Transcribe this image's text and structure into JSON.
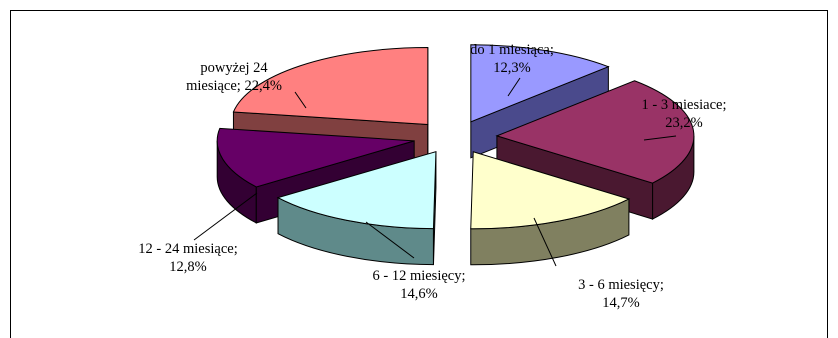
{
  "chart_data": {
    "type": "pie",
    "style": "3d-exploded",
    "legend": "none",
    "slices": [
      {
        "category": "do 1 miesiąca;",
        "percent_text": "12,3%",
        "value": 12.3,
        "top_color": "#9999ff",
        "side_color": "#4a4a8c"
      },
      {
        "category": "1 - 3 miesiace;",
        "percent_text": "23,2%",
        "value": 23.2,
        "top_color": "#993366",
        "side_color": "#4a1830"
      },
      {
        "category": "3 - 6 miesięcy;",
        "percent_text": "14,7%",
        "value": 14.7,
        "top_color": "#ffffcc",
        "side_color": "#808060"
      },
      {
        "category": "6 - 12 miesięcy;",
        "percent_text": "14,6%",
        "value": 14.6,
        "top_color": "#ccffff",
        "side_color": "#5f8a8a"
      },
      {
        "category": "12 - 24 miesiące;",
        "percent_text": "12,8%",
        "value": 12.8,
        "top_color": "#660066",
        "side_color": "#330033"
      },
      {
        "category": "powyżej 24 miesiące;",
        "category_line1": "powyżej 24",
        "category_line2": "miesiące; 22,4%",
        "percent_text": "22,4%",
        "value": 22.4,
        "top_color": "#ff8080",
        "side_color": "#804040"
      }
    ]
  }
}
